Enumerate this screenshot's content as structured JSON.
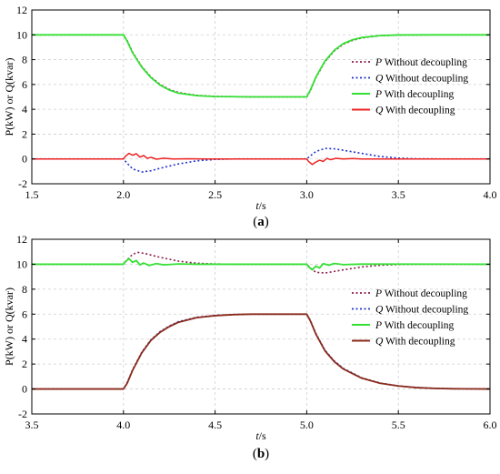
{
  "colors": {
    "p_without": "#8B1A4A",
    "q_without": "#1F33CC",
    "p_with": "#33E033",
    "q_with_a": "#EE2222",
    "q_with_b": "#8B2A1A",
    "grid": "#cfcfcf",
    "axis": "#000000"
  },
  "chart_data": [
    {
      "type": "line",
      "panel_label": "(a)",
      "panel_letter": "a",
      "xlabel": "t/s",
      "ylabel": "P(kW) or Q(kvar)",
      "xlim": [
        1.5,
        4.0
      ],
      "ylim": [
        -2,
        12
      ],
      "xticks": [
        "1.5",
        "2.0",
        "2.5",
        "3.0",
        "3.5",
        "4.0"
      ],
      "yticks": [
        "-2",
        "0",
        "2",
        "4",
        "6",
        "8",
        "10",
        "12"
      ],
      "grid": true,
      "legend_position": "right",
      "legend": [
        {
          "var": "P",
          "text": " Without decoupling",
          "style": "dotted",
          "color_key": "p_without"
        },
        {
          "var": "Q",
          "text": " Without decoupling",
          "style": "dotted",
          "color_key": "q_without"
        },
        {
          "var": "P",
          "text": " With decoupling",
          "style": "solid",
          "color_key": "p_with"
        },
        {
          "var": "Q",
          "text": " With decoupling",
          "style": "solid",
          "color_key": "q_with_a"
        }
      ],
      "series": [
        {
          "name": "P Without decoupling",
          "style": "dotted",
          "color_key": "p_without",
          "width": 1.6,
          "points": [
            [
              1.5,
              10
            ],
            [
              2.0,
              10
            ],
            [
              2.02,
              9.55
            ],
            [
              2.05,
              8.6
            ],
            [
              2.1,
              7.45
            ],
            [
              2.15,
              6.6
            ],
            [
              2.2,
              6.0
            ],
            [
              2.25,
              5.6
            ],
            [
              2.3,
              5.35
            ],
            [
              2.4,
              5.12
            ],
            [
              2.5,
              5.04
            ],
            [
              2.7,
              5.0
            ],
            [
              3.0,
              5.0
            ],
            [
              3.02,
              5.5
            ],
            [
              3.05,
              6.55
            ],
            [
              3.1,
              7.85
            ],
            [
              3.15,
              8.7
            ],
            [
              3.2,
              9.25
            ],
            [
              3.25,
              9.55
            ],
            [
              3.3,
              9.75
            ],
            [
              3.4,
              9.93
            ],
            [
              3.5,
              9.98
            ],
            [
              3.7,
              10
            ],
            [
              4.0,
              10
            ]
          ]
        },
        {
          "name": "Q Without decoupling",
          "style": "dotted",
          "color_key": "q_without",
          "width": 1.6,
          "points": [
            [
              1.5,
              0
            ],
            [
              2.0,
              0
            ],
            [
              2.02,
              -0.35
            ],
            [
              2.05,
              -0.8
            ],
            [
              2.1,
              -1.05
            ],
            [
              2.15,
              -0.95
            ],
            [
              2.2,
              -0.75
            ],
            [
              2.3,
              -0.4
            ],
            [
              2.4,
              -0.15
            ],
            [
              2.5,
              -0.04
            ],
            [
              2.6,
              0
            ],
            [
              3.0,
              0
            ],
            [
              3.02,
              0.25
            ],
            [
              3.05,
              0.6
            ],
            [
              3.1,
              0.85
            ],
            [
              3.15,
              0.82
            ],
            [
              3.2,
              0.7
            ],
            [
              3.3,
              0.45
            ],
            [
              3.4,
              0.2
            ],
            [
              3.5,
              0.07
            ],
            [
              3.6,
              0.01
            ],
            [
              4.0,
              0
            ]
          ]
        },
        {
          "name": "P With decoupling",
          "style": "solid",
          "color_key": "p_with",
          "width": 1.8,
          "points": [
            [
              1.5,
              10
            ],
            [
              2.0,
              10
            ],
            [
              2.02,
              9.5
            ],
            [
              2.05,
              8.55
            ],
            [
              2.1,
              7.4
            ],
            [
              2.15,
              6.55
            ],
            [
              2.2,
              5.95
            ],
            [
              2.25,
              5.55
            ],
            [
              2.3,
              5.3
            ],
            [
              2.4,
              5.1
            ],
            [
              2.5,
              5.03
            ],
            [
              2.7,
              5.0
            ],
            [
              3.0,
              5.0
            ],
            [
              3.02,
              5.55
            ],
            [
              3.05,
              6.6
            ],
            [
              3.1,
              7.9
            ],
            [
              3.15,
              8.75
            ],
            [
              3.2,
              9.3
            ],
            [
              3.25,
              9.6
            ],
            [
              3.3,
              9.78
            ],
            [
              3.4,
              9.94
            ],
            [
              3.5,
              9.99
            ],
            [
              3.7,
              10
            ],
            [
              4.0,
              10
            ]
          ]
        },
        {
          "name": "Q With decoupling",
          "style": "solid",
          "color_key": "q_with_a",
          "width": 1.5,
          "points": [
            [
              1.5,
              0
            ],
            [
              2.0,
              0
            ],
            [
              2.01,
              0.2
            ],
            [
              2.03,
              0.45
            ],
            [
              2.05,
              0.3
            ],
            [
              2.07,
              0.42
            ],
            [
              2.09,
              0.15
            ],
            [
              2.11,
              0.28
            ],
            [
              2.13,
              0.05
            ],
            [
              2.15,
              0.14
            ],
            [
              2.18,
              -0.02
            ],
            [
              2.22,
              0.06
            ],
            [
              2.27,
              0
            ],
            [
              2.35,
              0.02
            ],
            [
              2.45,
              0
            ],
            [
              3.0,
              0
            ],
            [
              3.01,
              -0.2
            ],
            [
              3.03,
              -0.45
            ],
            [
              3.05,
              -0.25
            ],
            [
              3.07,
              -0.1
            ],
            [
              3.09,
              -0.2
            ],
            [
              3.11,
              0.05
            ],
            [
              3.13,
              -0.06
            ],
            [
              3.16,
              0.05
            ],
            [
              3.2,
              0
            ],
            [
              3.25,
              0.03
            ],
            [
              3.3,
              0
            ],
            [
              4.0,
              0
            ]
          ]
        }
      ]
    },
    {
      "type": "line",
      "panel_label": "(b)",
      "panel_letter": "b",
      "xlabel": "t/s",
      "ylabel": "P(kW) or Q(kvar)",
      "xlim": [
        3.5,
        6.0
      ],
      "ylim": [
        -2,
        12
      ],
      "xticks": [
        "3.5",
        "4.0",
        "4.5",
        "5.0",
        "5.5",
        "6.0"
      ],
      "yticks": [
        "-2",
        "0",
        "2",
        "4",
        "6",
        "8",
        "10",
        "12"
      ],
      "grid": true,
      "legend_position": "right",
      "legend": [
        {
          "var": "P",
          "text": " Without decoupling",
          "style": "dotted",
          "color_key": "p_without"
        },
        {
          "var": "Q",
          "text": " Without decoupling",
          "style": "dotted",
          "color_key": "q_without"
        },
        {
          "var": "P",
          "text": " With decoupling",
          "style": "solid",
          "color_key": "p_with"
        },
        {
          "var": "Q",
          "text": " With decoupling",
          "style": "solid",
          "color_key": "q_with_b"
        }
      ],
      "series": [
        {
          "name": "P Without decoupling",
          "style": "dotted",
          "color_key": "p_without",
          "width": 1.6,
          "points": [
            [
              3.5,
              10
            ],
            [
              4.0,
              10
            ],
            [
              4.02,
              10.35
            ],
            [
              4.05,
              10.8
            ],
            [
              4.08,
              10.95
            ],
            [
              4.12,
              10.85
            ],
            [
              4.2,
              10.55
            ],
            [
              4.3,
              10.25
            ],
            [
              4.4,
              10.08
            ],
            [
              4.5,
              10.02
            ],
            [
              4.6,
              10
            ],
            [
              5.0,
              10
            ],
            [
              5.02,
              9.7
            ],
            [
              5.05,
              9.35
            ],
            [
              5.1,
              9.3
            ],
            [
              5.15,
              9.42
            ],
            [
              5.2,
              9.55
            ],
            [
              5.3,
              9.78
            ],
            [
              5.4,
              9.92
            ],
            [
              5.5,
              9.98
            ],
            [
              5.6,
              10
            ],
            [
              6.0,
              10
            ]
          ]
        },
        {
          "name": "Q Without decoupling",
          "style": "dotted",
          "color_key": "q_without",
          "width": 1.6,
          "points": [
            [
              3.5,
              0
            ],
            [
              4.0,
              0
            ],
            [
              4.02,
              0.5
            ],
            [
              4.05,
              1.55
            ],
            [
              4.1,
              2.95
            ],
            [
              4.15,
              3.95
            ],
            [
              4.2,
              4.6
            ],
            [
              4.25,
              5.05
            ],
            [
              4.3,
              5.4
            ],
            [
              4.4,
              5.75
            ],
            [
              4.5,
              5.9
            ],
            [
              4.6,
              5.97
            ],
            [
              4.7,
              6.0
            ],
            [
              5.0,
              6.0
            ],
            [
              5.02,
              5.5
            ],
            [
              5.05,
              4.45
            ],
            [
              5.1,
              3.1
            ],
            [
              5.15,
              2.25
            ],
            [
              5.2,
              1.65
            ],
            [
              5.3,
              0.9
            ],
            [
              5.4,
              0.48
            ],
            [
              5.5,
              0.25
            ],
            [
              5.6,
              0.12
            ],
            [
              5.7,
              0.05
            ],
            [
              5.8,
              0.02
            ],
            [
              6.0,
              0
            ]
          ]
        },
        {
          "name": "P With decoupling",
          "style": "solid",
          "color_key": "p_with",
          "width": 1.8,
          "points": [
            [
              3.5,
              10
            ],
            [
              4.0,
              10
            ],
            [
              4.01,
              10.2
            ],
            [
              4.03,
              10.45
            ],
            [
              4.05,
              10.15
            ],
            [
              4.07,
              10.3
            ],
            [
              4.09,
              9.95
            ],
            [
              4.11,
              10.1
            ],
            [
              4.14,
              9.9
            ],
            [
              4.18,
              10.05
            ],
            [
              4.22,
              9.95
            ],
            [
              4.3,
              10.02
            ],
            [
              4.4,
              10
            ],
            [
              5.0,
              10
            ],
            [
              5.01,
              9.8
            ],
            [
              5.03,
              9.55
            ],
            [
              5.05,
              9.85
            ],
            [
              5.07,
              9.7
            ],
            [
              5.09,
              10.05
            ],
            [
              5.12,
              9.92
            ],
            [
              5.15,
              10.06
            ],
            [
              5.2,
              9.97
            ],
            [
              5.3,
              10.01
            ],
            [
              6.0,
              10
            ]
          ]
        },
        {
          "name": "Q With decoupling",
          "style": "solid",
          "color_key": "q_with_b",
          "width": 1.8,
          "points": [
            [
              3.5,
              0
            ],
            [
              4.0,
              0
            ],
            [
              4.02,
              0.45
            ],
            [
              4.05,
              1.5
            ],
            [
              4.1,
              2.9
            ],
            [
              4.15,
              3.9
            ],
            [
              4.2,
              4.55
            ],
            [
              4.25,
              5.0
            ],
            [
              4.3,
              5.35
            ],
            [
              4.4,
              5.72
            ],
            [
              4.5,
              5.88
            ],
            [
              4.6,
              5.96
            ],
            [
              4.7,
              6.0
            ],
            [
              5.0,
              6.0
            ],
            [
              5.02,
              5.45
            ],
            [
              5.05,
              4.4
            ],
            [
              5.1,
              3.05
            ],
            [
              5.15,
              2.2
            ],
            [
              5.2,
              1.6
            ],
            [
              5.3,
              0.87
            ],
            [
              5.4,
              0.46
            ],
            [
              5.5,
              0.24
            ],
            [
              5.6,
              0.11
            ],
            [
              5.7,
              0.05
            ],
            [
              5.8,
              0.02
            ],
            [
              6.0,
              0
            ]
          ]
        }
      ]
    }
  ]
}
